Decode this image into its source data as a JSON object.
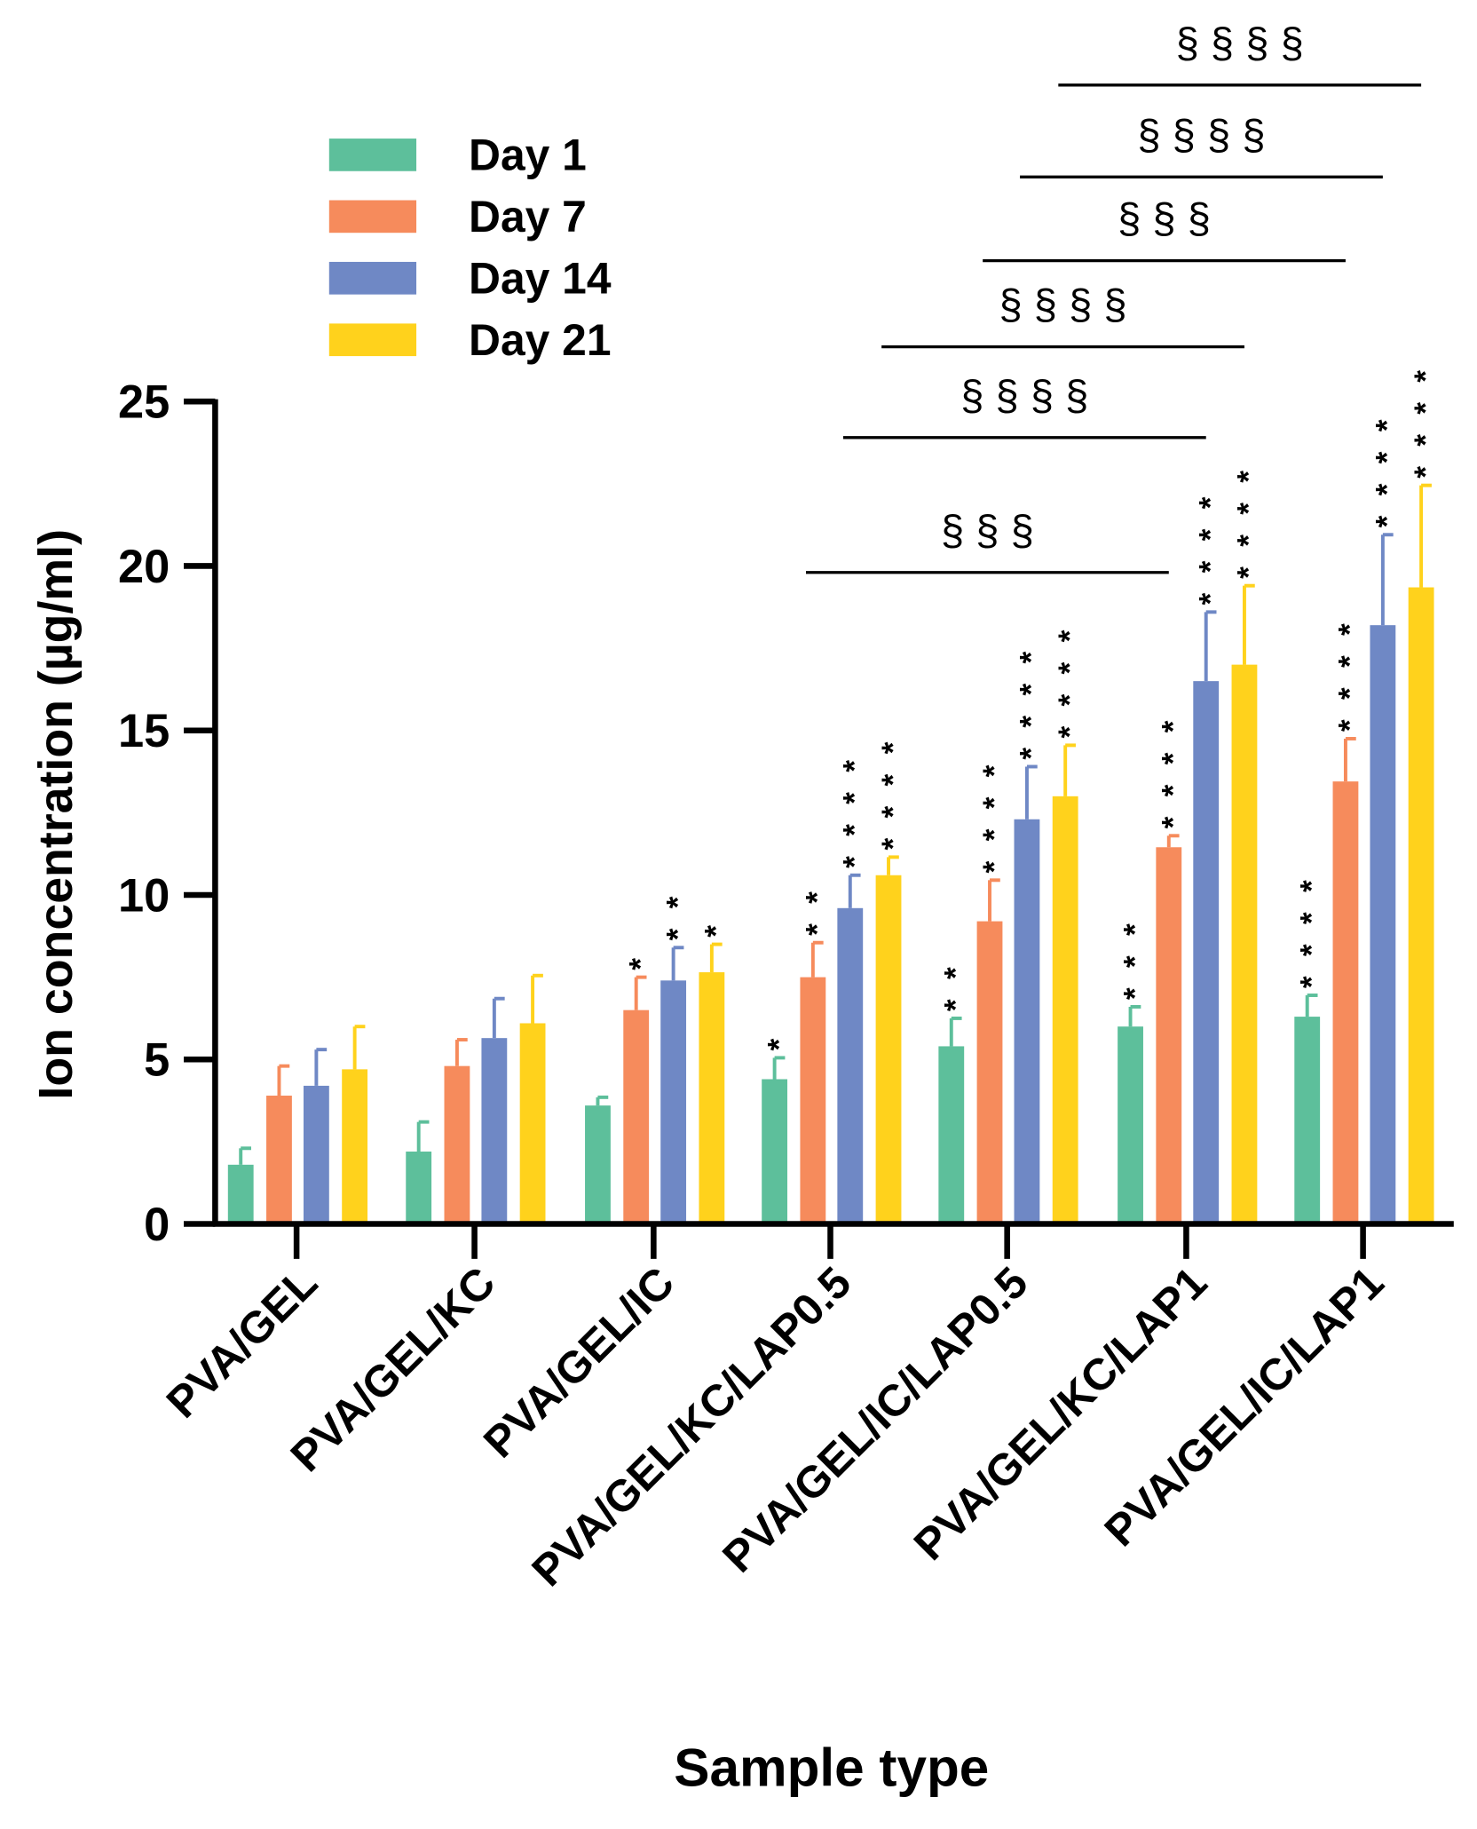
{
  "chart_data": {
    "type": "bar",
    "xlabel": "Sample type",
    "ylabel": "Ion concentration (µg/ml)",
    "ylim": [
      0,
      25
    ],
    "yticks": [
      "0",
      "5",
      "10",
      "15",
      "20",
      "25"
    ],
    "legend_placement": "top-left",
    "categories": [
      "PVA/GEL",
      "PVA/GEL/KC",
      "PVA/GEL/IC",
      "PVA/GEL/KC/LAP0.5",
      "PVA/GEL/IC/LAP0.5",
      "PVA/GEL/KC/LAP1",
      "PVA/GEL/IC/LAP1"
    ],
    "series": [
      {
        "name": "Day 1",
        "color": "#5DBF9B",
        "values": [
          1.8,
          2.2,
          3.6,
          4.4,
          5.4,
          6.0,
          6.3
        ],
        "error": [
          0.5,
          0.9,
          0.25,
          0.65,
          0.85,
          0.6,
          0.65
        ],
        "sig": [
          "",
          "",
          "",
          "*",
          "**",
          "***",
          "****"
        ]
      },
      {
        "name": "Day 7",
        "color": "#F68B5C",
        "values": [
          3.9,
          4.8,
          6.5,
          7.5,
          9.2,
          11.45,
          13.45
        ],
        "error": [
          0.9,
          0.8,
          1.0,
          1.05,
          1.25,
          0.35,
          1.3
        ],
        "sig": [
          "",
          "",
          "*",
          "**",
          "****",
          "****",
          "****"
        ]
      },
      {
        "name": "Day 14",
        "color": "#6F88C5",
        "values": [
          4.2,
          5.65,
          7.4,
          9.6,
          12.3,
          16.5,
          18.2
        ],
        "error": [
          1.1,
          1.2,
          1.0,
          1.0,
          1.6,
          2.1,
          2.75
        ],
        "sig": [
          "",
          "",
          "**",
          "****",
          "****",
          "****",
          "****"
        ]
      },
      {
        "name": "Day 21",
        "color": "#FFD21C",
        "values": [
          4.7,
          6.1,
          7.65,
          10.6,
          13.0,
          17.0,
          19.35
        ],
        "error": [
          1.3,
          1.45,
          0.85,
          0.55,
          1.55,
          2.4,
          3.1
        ],
        "sig": [
          "",
          "",
          "*",
          "****",
          "****",
          "****",
          "****"
        ]
      }
    ],
    "comparisons": [
      {
        "label": "§ § §",
        "from": [
          3,
          1
        ],
        "to": [
          5,
          1
        ]
      },
      {
        "label": "§ § § §",
        "from": [
          3,
          2
        ],
        "to": [
          5,
          2
        ]
      },
      {
        "label": "§ § § §",
        "from": [
          3,
          3
        ],
        "to": [
          5,
          3
        ]
      },
      {
        "label": "§ § §",
        "from": [
          4,
          1
        ],
        "to": [
          6,
          1
        ]
      },
      {
        "label": "§ § § §",
        "from": [
          4,
          2
        ],
        "to": [
          6,
          2
        ]
      },
      {
        "label": "§ § § §",
        "from": [
          4,
          3
        ],
        "to": [
          6,
          3
        ]
      }
    ]
  }
}
